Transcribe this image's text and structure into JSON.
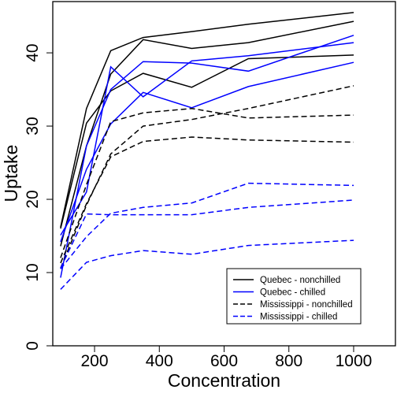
{
  "chart_data": {
    "type": "line",
    "title": "",
    "xlabel": "Concentration",
    "ylabel": "Uptake",
    "xlim": [
      71,
      1129
    ],
    "ylim": [
      0,
      47
    ],
    "x_ticks": [
      200,
      400,
      600,
      800,
      1000
    ],
    "y_ticks": [
      0,
      10,
      20,
      30,
      40
    ],
    "x_tick_labels": [
      "200",
      "400",
      "600",
      "800",
      "1000"
    ],
    "y_tick_labels": [
      "0",
      "10",
      "20",
      "30",
      "40"
    ],
    "x": [
      95,
      175,
      250,
      350,
      500,
      675,
      1000
    ],
    "grid": false,
    "legend_position": "bottom-right",
    "legend": [
      {
        "label": "Quebec - nonchilled",
        "color": "#000000",
        "dash": "solid"
      },
      {
        "label": "Quebec - chilled",
        "color": "#0000ff",
        "dash": "solid"
      },
      {
        "label": "Mississippi - nonchilled",
        "color": "#000000",
        "dash": "dashed"
      },
      {
        "label": "Mississippi - chilled",
        "color": "#0000ff",
        "dash": "dashed"
      }
    ],
    "series": [
      {
        "group": "Quebec - nonchilled",
        "color": "#000000",
        "dash": "solid",
        "values": [
          16.0,
          30.4,
          34.8,
          37.2,
          35.3,
          39.2,
          39.7
        ]
      },
      {
        "group": "Quebec - nonchilled",
        "color": "#000000",
        "dash": "solid",
        "values": [
          13.6,
          27.3,
          37.1,
          41.8,
          40.6,
          41.4,
          44.3
        ]
      },
      {
        "group": "Quebec - nonchilled",
        "color": "#000000",
        "dash": "solid",
        "values": [
          16.2,
          32.4,
          40.3,
          42.1,
          42.9,
          43.9,
          45.5
        ]
      },
      {
        "group": "Quebec - chilled",
        "color": "#0000ff",
        "dash": "solid",
        "values": [
          14.2,
          24.1,
          30.3,
          34.6,
          32.5,
          35.4,
          38.7
        ]
      },
      {
        "group": "Quebec - chilled",
        "color": "#0000ff",
        "dash": "solid",
        "values": [
          9.3,
          27.3,
          35.0,
          38.8,
          38.6,
          37.5,
          42.4
        ]
      },
      {
        "group": "Quebec - chilled",
        "color": "#0000ff",
        "dash": "solid",
        "values": [
          15.1,
          21.0,
          38.1,
          34.0,
          38.9,
          39.6,
          41.4
        ]
      },
      {
        "group": "Mississippi - nonchilled",
        "color": "#000000",
        "dash": "dashed",
        "values": [
          10.6,
          19.2,
          26.2,
          30.0,
          30.9,
          32.4,
          35.5
        ]
      },
      {
        "group": "Mississippi - nonchilled",
        "color": "#000000",
        "dash": "dashed",
        "values": [
          12.0,
          22.0,
          30.6,
          31.8,
          32.4,
          31.1,
          31.5
        ]
      },
      {
        "group": "Mississippi - nonchilled",
        "color": "#000000",
        "dash": "dashed",
        "values": [
          11.3,
          19.4,
          25.8,
          27.9,
          28.5,
          28.1,
          27.8
        ]
      },
      {
        "group": "Mississippi - chilled",
        "color": "#0000ff",
        "dash": "dashed",
        "values": [
          10.5,
          14.9,
          18.1,
          18.9,
          19.5,
          22.2,
          21.9
        ]
      },
      {
        "group": "Mississippi - chilled",
        "color": "#0000ff",
        "dash": "dashed",
        "values": [
          7.7,
          11.4,
          12.3,
          13.0,
          12.5,
          13.7,
          14.4
        ]
      },
      {
        "group": "Mississippi - chilled",
        "color": "#0000ff",
        "dash": "dashed",
        "values": [
          10.6,
          18.0,
          17.9,
          17.9,
          17.9,
          18.9,
          19.9
        ]
      }
    ]
  }
}
